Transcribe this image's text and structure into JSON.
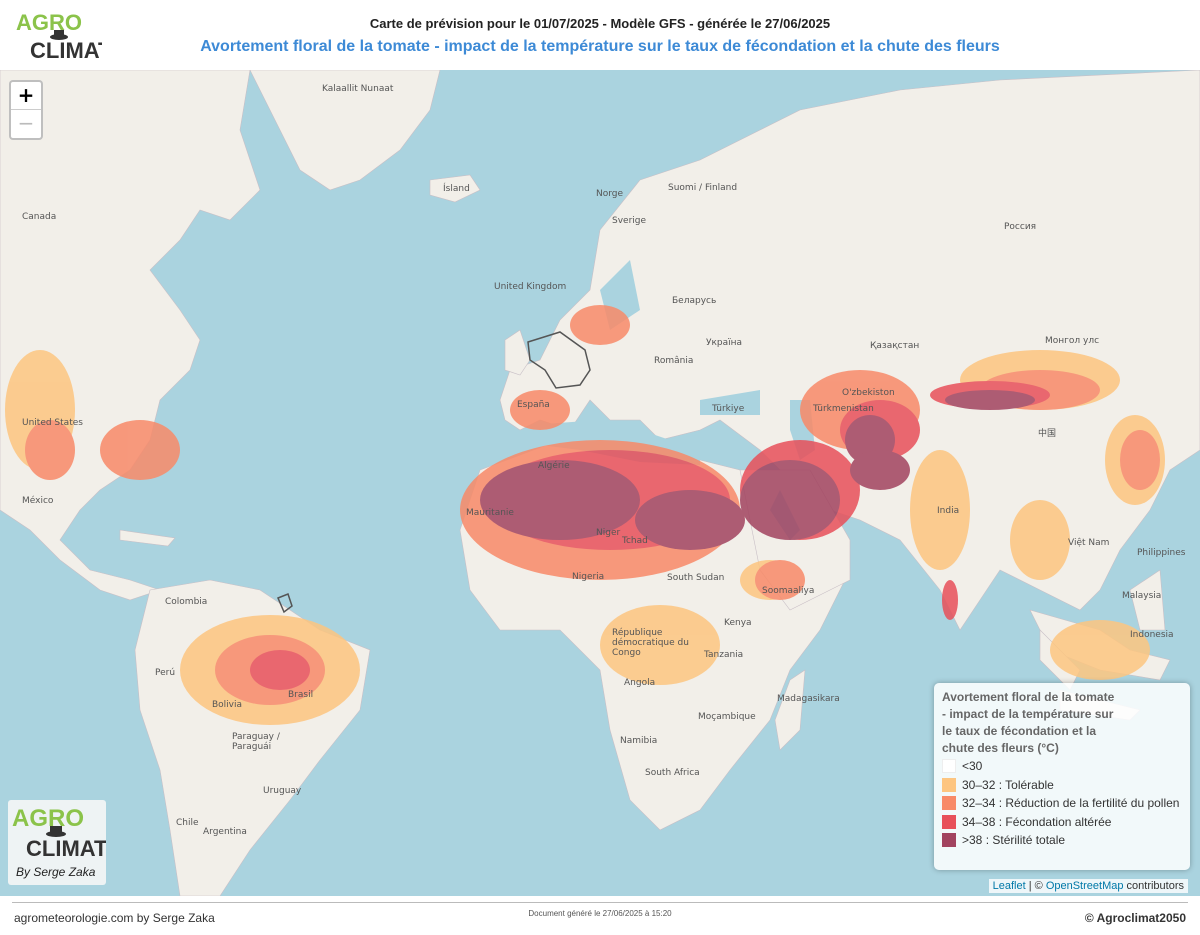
{
  "header": {
    "title": "Carte de prévision pour le 01/07/2025 - Modèle GFS - générée le 27/06/2025",
    "subtitle": "Avortement floral de la tomate - impact de la température sur le taux de fécondation et la chute des fleurs"
  },
  "logo": {
    "line1": "AGRO",
    "line2": "CLIMAT",
    "byline": "By Serge Zaka"
  },
  "zoom": {
    "in": "+",
    "out": "−"
  },
  "map_labels": [
    {
      "text": "Kalaallit Nunaat"
    },
    {
      "text": "Ísland"
    },
    {
      "text": "Canada"
    },
    {
      "text": "United Kingdom"
    },
    {
      "text": "Norge"
    },
    {
      "text": "Suomi / Finland"
    },
    {
      "text": "Sverige"
    },
    {
      "text": "Россия"
    },
    {
      "text": "Беларусь"
    },
    {
      "text": "Україна"
    },
    {
      "text": "România"
    },
    {
      "text": "Türkiye"
    },
    {
      "text": "España"
    },
    {
      "text": "Қазақстан"
    },
    {
      "text": "Монгол улс"
    },
    {
      "text": "O'zbekiston"
    },
    {
      "text": "Türkmenistan"
    },
    {
      "text": "中国"
    },
    {
      "text": "United States"
    },
    {
      "text": "México"
    },
    {
      "text": "Algérie"
    },
    {
      "text": "Mauritanie"
    },
    {
      "text": "Niger"
    },
    {
      "text": "Tchad"
    },
    {
      "text": "Nigeria"
    },
    {
      "text": "South Sudan"
    },
    {
      "text": "Soomaaliya"
    },
    {
      "text": "Kenya"
    },
    {
      "text": "Tanzania"
    },
    {
      "text": "Angola"
    },
    {
      "text": "Namibia"
    },
    {
      "text": "South Africa"
    },
    {
      "text": "Moçambique"
    },
    {
      "text": "Madagasikara"
    },
    {
      "text": "République démocratique du Congo"
    },
    {
      "text": "Colombia"
    },
    {
      "text": "Perú"
    },
    {
      "text": "Brasil"
    },
    {
      "text": "Bolivia"
    },
    {
      "text": "Paraguay / Paraguái"
    },
    {
      "text": "Chile"
    },
    {
      "text": "Argentina"
    },
    {
      "text": "Uruguay"
    },
    {
      "text": "India"
    },
    {
      "text": "Việt Nam"
    },
    {
      "text": "Philippines"
    },
    {
      "text": "Malaysia"
    },
    {
      "text": "Indonesia"
    }
  ],
  "legend": {
    "title": "Avortement floral de la tomate - impact de la température sur le taux de fécondation et la chute des fleurs (°C)",
    "items": [
      {
        "label": "<30",
        "color": "#ffffff"
      },
      {
        "label": "30–32 : Tolérable",
        "color": "#fdc580"
      },
      {
        "label": "32–34 : Réduction de la fertilité du pollen",
        "color": "#f88a68"
      },
      {
        "label": "34–38 : Fécondation altérée",
        "color": "#e8505a"
      },
      {
        "label": ">38 : Stérilité totale",
        "color": "#a2435f"
      }
    ]
  },
  "attribution": {
    "leaflet": "Leaflet",
    "sep": " | © ",
    "osm": "OpenStreetMap",
    "rest": " contributors"
  },
  "footer": {
    "left": "agrometeorologie.com by Serge Zaka",
    "middle": "Document généré le 27/06/2025 à 15:20",
    "right": "© Agroclimat2050"
  }
}
